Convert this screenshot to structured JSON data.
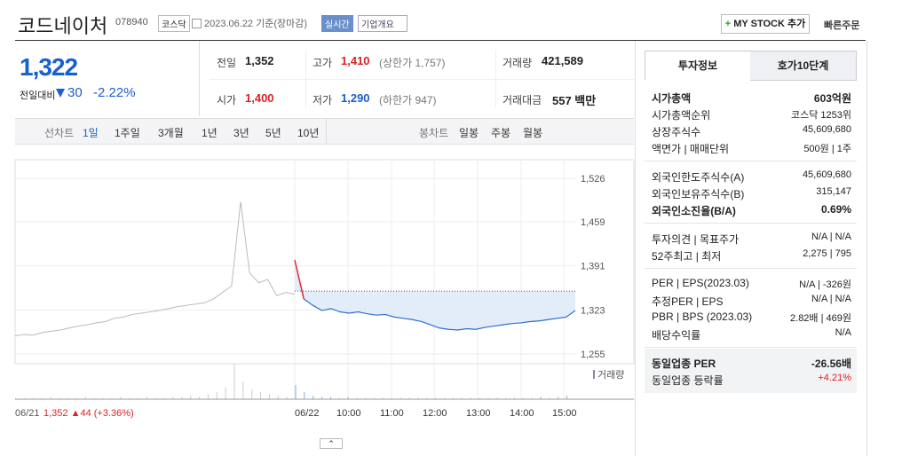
{
  "header": {
    "title": "코드네이처",
    "code": "078940",
    "market": "코스닥",
    "date": "2023.06.22 기준(장마감)",
    "realtime": "실시간",
    "company_info": "기업개요",
    "mystock": "MY STOCK 추가",
    "quick_order": "빠른주문"
  },
  "price": {
    "current": "1,322",
    "change_label": "전일대비",
    "change": "30",
    "change_pct": "-2.22%"
  },
  "summary": [
    {
      "label": "전일",
      "value": "1,352"
    },
    {
      "label": "고가",
      "value": "1,410",
      "extra": "(상한가 1,757)"
    },
    {
      "label": "거래량",
      "value": "421,589"
    },
    {
      "label": "시가",
      "value": "1,400"
    },
    {
      "label": "저가",
      "value": "1,290",
      "extra": "(하한가 947)"
    },
    {
      "label": "거래대금",
      "value": "557 백만"
    }
  ],
  "tabs": {
    "line_label": "선차트",
    "periods": [
      "1일",
      "1주일",
      "3개월",
      "1년",
      "3년",
      "5년",
      "10년"
    ],
    "candle_label": "봉차트",
    "candles": [
      "일봉",
      "주봉",
      "월봉"
    ]
  },
  "chart": {
    "ylim": [
      1255,
      1526
    ],
    "yticks": [
      {
        "value": 1526,
        "label": "1,526"
      },
      {
        "value": 1459,
        "label": "1,459"
      },
      {
        "value": 1391,
        "label": "1,391"
      },
      {
        "value": 1323,
        "label": "1,323"
      },
      {
        "value": 1255,
        "label": "1,255"
      }
    ],
    "prev_close": 1352,
    "prev_values": [
      1283,
      1285,
      1284,
      1288,
      1290,
      1292,
      1295,
      1298,
      1300,
      1303,
      1305,
      1310,
      1312,
      1316,
      1318,
      1320,
      1322,
      1325,
      1328,
      1330,
      1332,
      1334,
      1340,
      1350,
      1360,
      1490,
      1380,
      1365,
      1370,
      1345,
      1350,
      1347
    ],
    "today_values": [
      1400,
      1340,
      1330,
      1322,
      1325,
      1320,
      1318,
      1320,
      1317,
      1315,
      1316,
      1312,
      1310,
      1308,
      1305,
      1300,
      1295,
      1293,
      1292,
      1294,
      1293,
      1296,
      1298,
      1300,
      1302,
      1303,
      1305,
      1306,
      1308,
      1310,
      1312,
      1322
    ],
    "volume": [
      1,
      1,
      1,
      1,
      2,
      1,
      1,
      1,
      2,
      1,
      1,
      1,
      2,
      1,
      1,
      2,
      1,
      1,
      2,
      2,
      3,
      2,
      4,
      6,
      10,
      30,
      15,
      8,
      6,
      4,
      3,
      2,
      12,
      6,
      3,
      2,
      2,
      1,
      2,
      1,
      1,
      1,
      1,
      1,
      1,
      1,
      1,
      1,
      1,
      1,
      1,
      1,
      1,
      1,
      1,
      1,
      1,
      1,
      1,
      1,
      2,
      1,
      2,
      3
    ],
    "legend": "거래량",
    "prev_date": "06/21",
    "prev_info": "1,352 ▲44 (+3.36%)",
    "xlabels": [
      "06/22",
      "10:00",
      "11:00",
      "12:00",
      "13:00",
      "14:00",
      "15:00"
    ]
  },
  "panel": {
    "tabs": [
      "투자정보",
      "호가10단계"
    ],
    "groups": [
      [
        {
          "label": "시가총액",
          "value": "603억원",
          "bold": true
        },
        {
          "label": "시가총액순위",
          "value": "코스닥 1253위"
        },
        {
          "label": "상장주식수",
          "value": "45,609,680"
        },
        {
          "label": "액면가 | 매매단위",
          "value": "500원 | 1주"
        }
      ],
      [
        {
          "label": "외국인한도주식수(A)",
          "value": "45,609,680"
        },
        {
          "label": "외국인보유주식수(B)",
          "value": "315,147"
        },
        {
          "label": "외국인소진율(B/A)",
          "value": "0.69%",
          "bold": true
        }
      ],
      [
        {
          "label": "투자의견 | 목표주가",
          "value": "N/A | N/A"
        },
        {
          "label": "52주최고 | 최저",
          "value": "2,275 | 795"
        }
      ],
      [
        {
          "label": "PER | EPS(2023.03)",
          "value": "N/A | -326원"
        },
        {
          "label": "추정PER | EPS",
          "value": "N/A | N/A"
        },
        {
          "label": "PBR | BPS (2023.03)",
          "value": "2.82배 | 469원"
        },
        {
          "label": "배당수익률",
          "value": "N/A"
        }
      ],
      [
        {
          "label": "동일업종 PER",
          "value": "-26.56배",
          "bold": true
        },
        {
          "label": "동일업종 등락률",
          "value": "+4.21%",
          "red": true
        }
      ]
    ]
  }
}
